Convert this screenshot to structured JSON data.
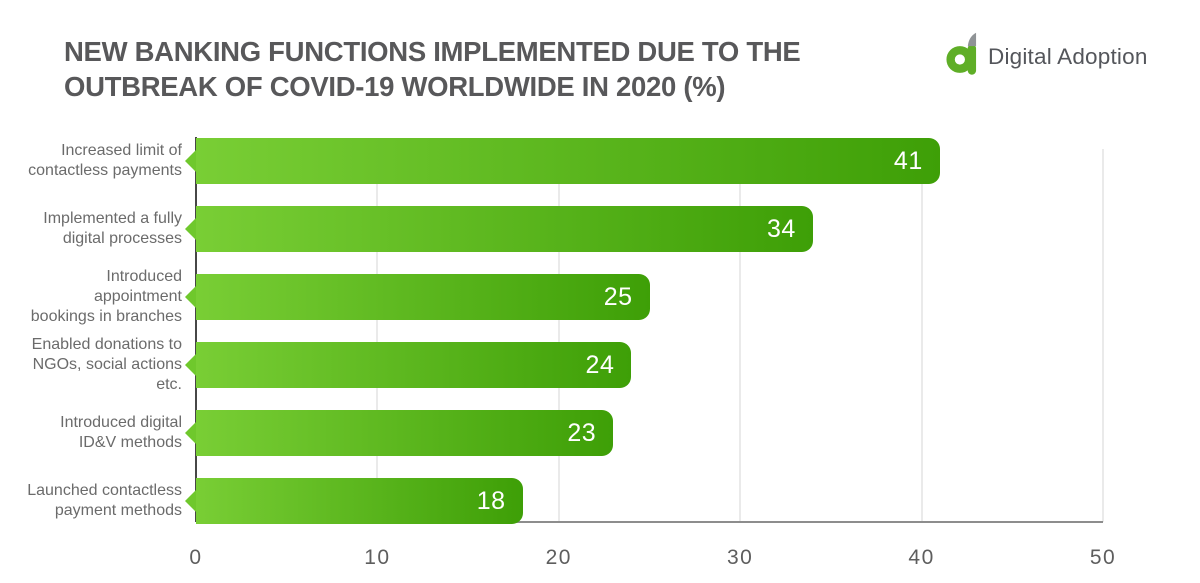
{
  "header": {
    "title": "NEW BANKING FUNCTIONS IMPLEMENTED DUE TO THE\nOUTBREAK OF COVID-19 WORLDWIDE IN 2020 (%)",
    "brand": "Digital Adoption"
  },
  "chart_data": {
    "type": "bar",
    "orientation": "horizontal",
    "title": "NEW BANKING FUNCTIONS IMPLEMENTED DUE TO THE OUTBREAK OF COVID-19 WORLDWIDE IN 2020 (%)",
    "categories": [
      [
        "Increased limit of",
        "contactless payments"
      ],
      [
        "Implemented a fully",
        "digital processes"
      ],
      [
        "Introduced",
        "appointment",
        "bookings in branches"
      ],
      [
        "Enabled donations to",
        "NGOs, social actions",
        "etc."
      ],
      [
        "Introduced digital",
        "ID&V methods"
      ],
      [
        "Launched contactless",
        "payment methods"
      ]
    ],
    "values": [
      41,
      34,
      25,
      24,
      23,
      18
    ],
    "xlabel": "",
    "ylabel": "",
    "xlim": [
      0,
      50
    ],
    "xticks": [
      0,
      10,
      20,
      30,
      40,
      50
    ],
    "grid": true,
    "legend": false,
    "colors": {
      "bar_gradient_start": "#79ce35",
      "bar_gradient_end": "#3e9f07",
      "notch": "#6fc82c",
      "value_text": "#ffffff",
      "title_text": "#58585a",
      "label_text": "#6b6b6b",
      "tick_text": "#5e5e5e",
      "gridline": "#d4d4d4",
      "axis_line": "#474747",
      "logo_green": "#5fae27",
      "logo_gray": "#8f9396"
    }
  }
}
